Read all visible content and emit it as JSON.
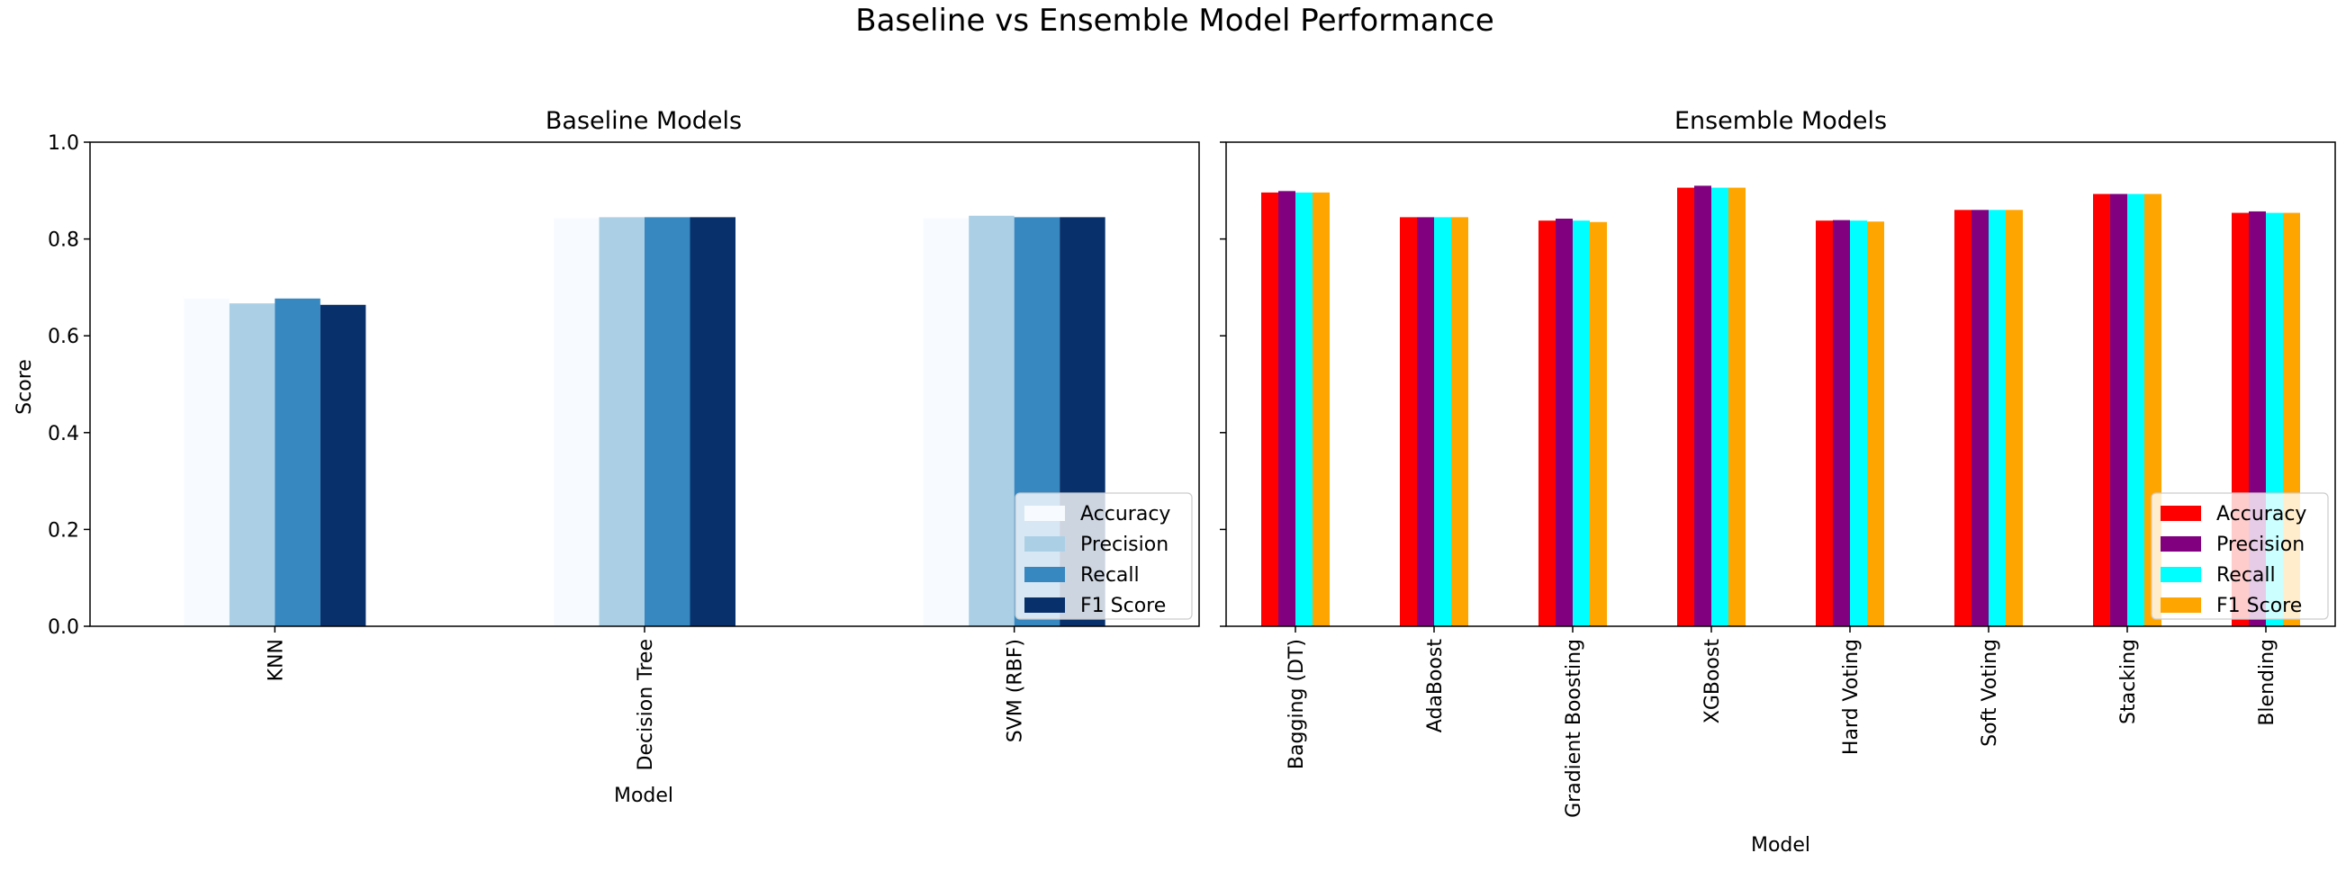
{
  "figure": {
    "title": "Baseline vs Ensemble Model Performance"
  },
  "chart_data": [
    {
      "type": "bar",
      "title": "Baseline Models",
      "xlabel": "Model",
      "ylabel": "Score",
      "ylim": [
        0,
        1.0
      ],
      "yticks": [
        "0.0",
        "0.2",
        "0.4",
        "0.6",
        "0.8",
        "1.0"
      ],
      "categories": [
        "KNN",
        "Decision Tree",
        "SVM (RBF)"
      ],
      "legend_position": "lower-right",
      "series": [
        {
          "name": "Accuracy",
          "color": "#f7fbff",
          "values": [
            0.677,
            0.843,
            0.843
          ]
        },
        {
          "name": "Precision",
          "color": "#abd0e6",
          "values": [
            0.667,
            0.845,
            0.848
          ]
        },
        {
          "name": "Recall",
          "color": "#3787c0",
          "values": [
            0.677,
            0.845,
            0.845
          ]
        },
        {
          "name": "F1 Score",
          "color": "#08306b",
          "values": [
            0.664,
            0.845,
            0.845
          ]
        }
      ]
    },
    {
      "type": "bar",
      "title": "Ensemble Models",
      "xlabel": "Model",
      "ylabel": "",
      "ylim": [
        0,
        1.0
      ],
      "categories": [
        "Bagging (DT)",
        "AdaBoost",
        "Gradient Boosting",
        "XGBoost",
        "Hard Voting",
        "Soft Voting",
        "Stacking",
        "Blending"
      ],
      "legend_position": "lower-right",
      "series": [
        {
          "name": "Accuracy",
          "color": "#ff0000",
          "values": [
            0.896,
            0.845,
            0.838,
            0.906,
            0.838,
            0.86,
            0.893,
            0.854
          ]
        },
        {
          "name": "Precision",
          "color": "#800080",
          "values": [
            0.899,
            0.845,
            0.842,
            0.91,
            0.839,
            0.86,
            0.893,
            0.857
          ]
        },
        {
          "name": "Recall",
          "color": "#00ffff",
          "values": [
            0.896,
            0.845,
            0.838,
            0.906,
            0.838,
            0.86,
            0.893,
            0.854
          ]
        },
        {
          "name": "F1 Score",
          "color": "#ffa500",
          "values": [
            0.896,
            0.845,
            0.835,
            0.906,
            0.836,
            0.86,
            0.893,
            0.854
          ]
        }
      ]
    }
  ]
}
